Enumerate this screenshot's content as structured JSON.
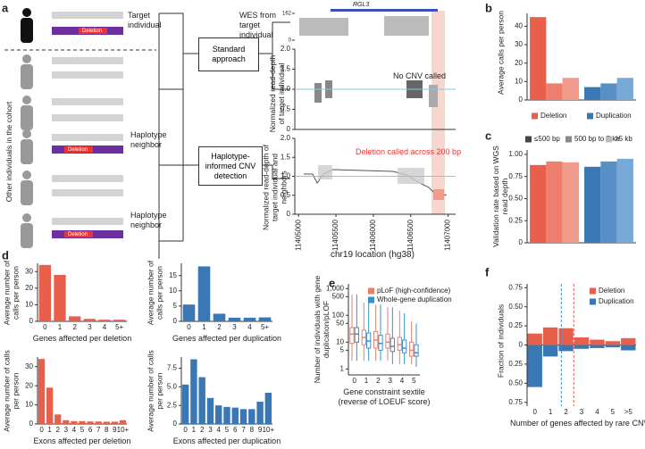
{
  "panels": [
    "a",
    "b",
    "c",
    "d",
    "e",
    "f"
  ],
  "panel_a": {
    "target_label": "Target individual",
    "deletion_label": "Deletion",
    "cohort_label": "Other individuals in the cohort",
    "neighbor_label": "Haplotype neighbor",
    "standard_label": "Standard approach",
    "informed_label": "Haplotype-informed CNV detection",
    "wes_label": "WES from target individual",
    "gene_label": "RGL3",
    "coverage_ylim": [
      0,
      162
    ],
    "coverage_ticks": [
      0,
      162
    ],
    "plot2_ylabel": "Normalized read-depth of target individual",
    "plot2_note": "No CNV called",
    "plot3_ylabel": "Normalized read-depth of target individual and neighbors",
    "plot3_note": "Deletion called across 200 bp",
    "read_depth_ylim": [
      0,
      2
    ],
    "read_depth_yticks": [
      0,
      0.5,
      {
        "value": 1,
        "label": "1.0"
      },
      1.5,
      {
        "value": 2,
        "label": "2.0"
      }
    ],
    "xlim": [
      11404950,
      11407100
    ],
    "xticks": [
      11405000,
      11405500,
      11406000,
      11406500,
      11407000
    ],
    "xlabel": "chr19 location (hg38)"
  },
  "chart_data": [
    {
      "type": "group_bar",
      "ylabel": "Average calls per person",
      "ylim": [
        0,
        47
      ],
      "yticks": [
        0,
        10,
        20,
        30,
        40
      ],
      "legend": "bottom",
      "series": [
        {
          "name": "Deletion",
          "colors": [
            "#e8604c",
            "#ec7f6d",
            "#f09b8b"
          ],
          "values": [
            45,
            9,
            12
          ]
        },
        {
          "name": "Duplication",
          "colors": [
            "#3a78b5",
            "#5790c6",
            "#78a9d6"
          ],
          "values": [
            7,
            9,
            12
          ]
        }
      ]
    },
    {
      "type": "group_bar",
      "ylabel": "Validation rate based on WGS read depth",
      "ylim": [
        0,
        1.05
      ],
      "yticks": [
        0,
        0.25,
        {
          "value": 0.5,
          "label": "0.50"
        },
        0.75,
        {
          "value": 1,
          "label": "1.00"
        }
      ],
      "legend": "top",
      "categories": [
        "≤500 bp",
        "500 bp to 5 kb",
        ">5 kb"
      ],
      "category_colors": [
        "#444444",
        "#888888",
        "#bbbbbb"
      ],
      "series": [
        {
          "name": "Deletion",
          "colors": [
            "#e8604c",
            "#ec7f6d",
            "#f09b8b"
          ],
          "values": [
            0.88,
            0.92,
            0.91
          ]
        },
        {
          "name": "Duplication",
          "colors": [
            "#3a78b5",
            "#5790c6",
            "#78a9d6"
          ],
          "values": [
            0.86,
            0.92,
            0.95
          ]
        }
      ]
    },
    {
      "type": "bar",
      "ylabel": "Average number of calls per person",
      "xlabel": "Genes affected per deletion",
      "color": "#e8604c",
      "categories": [
        "0",
        "1",
        "2",
        "3",
        "4",
        "5+"
      ],
      "values": [
        34,
        28,
        3,
        1.5,
        1,
        1
      ],
      "ylim": [
        0,
        35
      ],
      "yticks": [
        0,
        10,
        20,
        30
      ]
    },
    {
      "type": "bar",
      "ylabel": "Average number of calls per person",
      "xlabel": "Genes affected per duplication",
      "color": "#3a78b5",
      "categories": [
        "0",
        "1",
        "2",
        "3",
        "4",
        "5+"
      ],
      "values": [
        5.5,
        18,
        2.5,
        1.2,
        1.2,
        1.3
      ],
      "ylim": [
        0,
        19
      ],
      "yticks": [
        0,
        5,
        10,
        15
      ]
    },
    {
      "type": "bar",
      "ylabel": "Average number of calls per person",
      "xlabel": "Exons affected per deletion",
      "color": "#e8604c",
      "categories": [
        "0",
        "1",
        "2",
        "3",
        "4",
        "5",
        "6",
        "7",
        "8",
        "9",
        "10+"
      ],
      "values": [
        34,
        19,
        5,
        2,
        1.5,
        1.5,
        1.3,
        1.3,
        1.2,
        1.2,
        2
      ],
      "ylim": [
        0,
        35
      ],
      "yticks": [
        0,
        10,
        20,
        30
      ]
    },
    {
      "type": "bar",
      "ylabel": "Average number of calls per person",
      "xlabel": "Exons affected per duplication",
      "color": "#3a78b5",
      "categories": [
        "0",
        "1",
        "2",
        "3",
        "4",
        "5",
        "6",
        "7",
        "8",
        "9",
        "10+"
      ],
      "values": [
        5.3,
        8.7,
        6.3,
        3.5,
        2.5,
        2.3,
        2.2,
        2,
        2,
        3,
        4.2
      ],
      "ylim": [
        0,
        9
      ],
      "yticks": [
        0,
        2.5,
        {
          "value": 5,
          "label": "5.0"
        },
        7.5
      ]
    },
    {
      "type": "box",
      "log": true,
      "ylabel": "Number of individuals with gene duplication/pLOF",
      "xlabel": "Gene constraint sextile (reverse of LOEUF score)",
      "ylim": [
        0.6,
        1500
      ],
      "yticks": [
        1,
        5,
        10,
        50,
        100,
        500,
        {
          "value": 1000,
          "label": "1,000"
        }
      ],
      "legend": "upper right",
      "categories": [
        "0",
        "1",
        "2",
        "3",
        "4",
        "5"
      ],
      "series": [
        {
          "name": "pLoF (high-confidence)",
          "color": "#e8806c",
          "values": [
            [
              2,
              9,
              20,
              35,
              600
            ],
            [
              2,
              8,
              15,
              28,
              300
            ],
            [
              2,
              6,
              12,
              25,
              250
            ],
            [
              2,
              6,
              10,
              20,
              200
            ],
            [
              1.5,
              5,
              8,
              15,
              150
            ],
            [
              1.5,
              3,
              5,
              10,
              60
            ]
          ]
        },
        {
          "name": "Whole-gene duplication",
          "color": "#3a8fc8",
          "values": [
            [
              2,
              10,
              20,
              35,
              600
            ],
            [
              2,
              6,
              11,
              22,
              300
            ],
            [
              2,
              5,
              9,
              18,
              250
            ],
            [
              1.5,
              4.5,
              7,
              14,
              200
            ],
            [
              1.5,
              4,
              6,
              12,
              120
            ],
            [
              1.2,
              3,
              4,
              8,
              50
            ]
          ]
        }
      ]
    },
    {
      "type": "diverging_bar",
      "ylabel": "Fraction of individuals",
      "xlabel": "Number of genes affected by rare CNVs",
      "legend": "upper right",
      "ylim": [
        -0.8,
        0.8
      ],
      "yticks": [
        0.75,
        {
          "value": 0.5,
          "label": "0.50"
        },
        0.25,
        0,
        {
          "value": -0.25,
          "label": "0.25"
        },
        {
          "value": -0.5,
          "label": "0.50"
        },
        {
          "value": -0.75,
          "label": "0.75"
        }
      ],
      "categories": [
        "0",
        "1",
        "2",
        "3",
        "4",
        "5",
        ">5"
      ],
      "reference_lines": [
        {
          "x": 1.7,
          "color": "#3a8fc8"
        },
        {
          "x": 2.5,
          "color": "#e8604c"
        }
      ],
      "series": [
        {
          "name": "Deletion",
          "color": "#e8604c",
          "values": [
            0.15,
            0.23,
            0.22,
            0.1,
            0.07,
            0.05,
            0.09
          ]
        },
        {
          "name": "Duplication",
          "color": "#3a78b5",
          "values": [
            -0.55,
            -0.15,
            -0.08,
            -0.05,
            -0.04,
            -0.03,
            -0.07
          ]
        }
      ]
    }
  ]
}
